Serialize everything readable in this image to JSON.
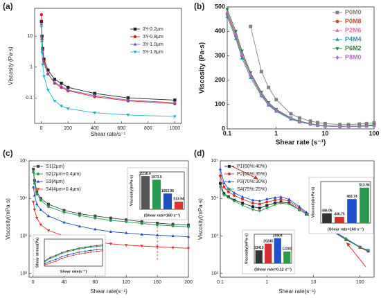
{
  "chart_data": [
    {
      "type": "line",
      "label": "(a)",
      "ylabel": "Viscosity (Pa·s)",
      "xlabel": "Shear rate/s⁻¹",
      "x": [
        1,
        5,
        10,
        20,
        50,
        100,
        150,
        200,
        400,
        650,
        1000
      ],
      "xlim": [
        -50,
        1050
      ],
      "xticks": [
        0,
        200,
        400,
        600,
        800,
        1000
      ],
      "ylim": [
        0.015,
        80
      ],
      "ylog": true,
      "yticks": [
        0.1,
        1,
        10
      ],
      "legend": "upper right",
      "series": [
        {
          "name": "3Y-0.2μm",
          "color": "#222222",
          "marker": "square",
          "values": [
            30,
            10,
            4,
            1.8,
            0.8,
            0.4,
            0.3,
            0.22,
            0.14,
            0.1,
            0.085
          ]
        },
        {
          "name": "3Y-0.8μm",
          "color": "#e02020",
          "marker": "circle",
          "values": [
            50,
            8,
            3.5,
            1.5,
            0.6,
            0.3,
            0.22,
            0.17,
            0.11,
            0.08,
            0.065
          ]
        },
        {
          "name": "3Y-1.0μm",
          "color": "#7a5cc0",
          "marker": "triangle",
          "values": [
            25,
            7,
            3,
            1.3,
            0.6,
            0.32,
            0.24,
            0.18,
            0.12,
            0.085,
            0.07
          ]
        },
        {
          "name": "5Y-1.8μm",
          "color": "#20b8c0",
          "marker": "triangle-down",
          "values": [
            20,
            3,
            1.2,
            0.5,
            0.18,
            0.08,
            0.055,
            0.045,
            0.033,
            0.028,
            0.025
          ]
        }
      ]
    },
    {
      "type": "line",
      "label": "(b)",
      "ylabel": "Viscosity (Pa·s)",
      "xlabel": "Shear rate (s⁻¹)",
      "x": [
        0.1,
        0.15,
        0.2,
        0.3,
        0.5,
        0.7,
        1,
        2,
        3,
        5,
        7,
        10,
        20,
        30,
        50,
        70,
        100
      ],
      "xlim": [
        0.1,
        100
      ],
      "xlog": true,
      "xticks": [
        0.1,
        1,
        10,
        100
      ],
      "ylim": [
        0,
        500
      ],
      "yticks": [
        0,
        100,
        200,
        300,
        400,
        500
      ],
      "legend": "upper right",
      "legend_colored_text": true,
      "bold_labels": true,
      "series": [
        {
          "name": "P0M0",
          "color": "#808080",
          "marker": "square",
          "values": [
            null,
            null,
            null,
            420,
            235,
            170,
            120,
            62,
            45,
            32,
            26,
            22,
            18,
            18,
            20,
            22,
            25
          ]
        },
        {
          "name": "P0M8",
          "color": "#c0502a",
          "marker": "circle",
          "values": [
            470,
            380,
            300,
            220,
            140,
            100,
            75,
            42,
            30,
            20,
            15,
            12,
            10,
            10,
            11,
            13,
            16
          ]
        },
        {
          "name": "P2M6",
          "color": "#e070a0",
          "marker": "triangle",
          "values": [
            480,
            390,
            310,
            225,
            145,
            105,
            78,
            44,
            31,
            21,
            16,
            13,
            10,
            10,
            11,
            13,
            15
          ]
        },
        {
          "name": "P4M4",
          "color": "#3090a0",
          "marker": "triangle",
          "values": [
            460,
            370,
            290,
            210,
            135,
            97,
            72,
            40,
            28,
            19,
            14,
            11,
            9,
            9,
            10,
            11,
            13
          ]
        },
        {
          "name": "P6M2",
          "color": "#2a8040",
          "marker": "triangle-down",
          "values": [
            490,
            400,
            320,
            230,
            150,
            108,
            80,
            45,
            32,
            22,
            16,
            13,
            11,
            11,
            12,
            14,
            17
          ]
        },
        {
          "name": "P8M0",
          "color": "#b070c0",
          "marker": "diamond",
          "values": [
            475,
            385,
            305,
            222,
            142,
            102,
            76,
            43,
            30,
            20,
            15,
            12,
            10,
            10,
            11,
            12,
            14
          ]
        }
      ]
    },
    {
      "type": "line",
      "label": "(c)",
      "ylabel": "Viscosity(mPa·s)",
      "xlabel": "Shear rate(s⁻¹)",
      "x": [
        0.5,
        2,
        5,
        10,
        20,
        40,
        60,
        80,
        100,
        120,
        140,
        160,
        180,
        200
      ],
      "xlim": [
        -5,
        200
      ],
      "xticks": [
        0,
        40,
        80,
        120,
        160,
        200
      ],
      "ylim": [
        80,
        100000
      ],
      "ylog": true,
      "yticks": [
        {
          "value": 100,
          "label": "10²"
        },
        {
          "value": 1000,
          "label": "10³"
        },
        {
          "value": 10000,
          "label": "10⁴"
        },
        {
          "value": 100000,
          "label": "10⁵"
        }
      ],
      "legend": "upper left",
      "reference_x": 160,
      "series": [
        {
          "name": "S1(2μm)",
          "color": "#444444",
          "marker": "square",
          "values": [
            60000,
            30000,
            15000,
            10000,
            7000,
            4800,
            3900,
            3400,
            3000,
            2700,
            2400,
            2200,
            2050,
            1950
          ]
        },
        {
          "name": "S2(2μm+0.4μm)",
          "color": "#2a9a50",
          "marker": "circle",
          "values": [
            50000,
            25000,
            13000,
            9000,
            6000,
            4300,
            3500,
            3000,
            2600,
            2400,
            2150,
            1970,
            1850,
            1750
          ]
        },
        {
          "name": "S3(4μm)",
          "color": "#2050c0",
          "marker": "triangle",
          "values": [
            20000,
            12000,
            7000,
            5000,
            3400,
            2300,
            1800,
            1500,
            1300,
            1200,
            1100,
            1050,
            1000,
            950
          ]
        },
        {
          "name": "S4(4μm+0.4μm)",
          "color": "#e03030",
          "marker": "triangle-down",
          "values": [
            8000,
            5000,
            3000,
            2000,
            1400,
            1000,
            800,
            700,
            620,
            570,
            540,
            514,
            490,
            470
          ]
        }
      ],
      "insets": [
        {
          "type": "bar",
          "ylabel": "Viscosity(mPa·s)",
          "xlabel": "(Shear rate=160 s⁻¹)",
          "ylim": [
            0,
            2500
          ],
          "values": [
            2218.4,
            1973.5,
            1053.96,
            513.94
          ],
          "colors": [
            "#555555",
            "#2a9a50",
            "#2050c0",
            "#e03030"
          ]
        },
        {
          "type": "line",
          "ylabel": "Shear stress(Pa)",
          "xlabel": "Shear rate(s⁻¹)",
          "xlim": [
            0,
            100
          ],
          "ylim": [
            0,
            300
          ],
          "x": [
            1,
            10,
            20,
            30,
            40,
            50,
            60,
            70,
            80,
            90,
            100
          ],
          "series": [
            {
              "color": "#444444",
              "values": [
                60,
                95,
                120,
                150,
                170,
                185,
                200,
                210,
                220,
                228,
                235
              ]
            },
            {
              "color": "#2a9a50",
              "values": [
                50,
                85,
                110,
                140,
                160,
                175,
                190,
                200,
                210,
                218,
                225
              ]
            },
            {
              "color": "#2050c0",
              "values": [
                30,
                55,
                75,
                105,
                125,
                140,
                155,
                165,
                175,
                182,
                190
              ]
            },
            {
              "color": "#e03030",
              "values": [
                15,
                35,
                55,
                85,
                105,
                120,
                135,
                145,
                155,
                162,
                170
              ]
            }
          ]
        }
      ]
    },
    {
      "type": "line",
      "label": "(d)",
      "ylabel": "Viscosity(mPa·s)",
      "xlabel": "Shear rate(s⁻¹)",
      "x": [
        0.1,
        0.12,
        0.15,
        0.2,
        0.3,
        0.5,
        0.7,
        1,
        1.5,
        2,
        3,
        5,
        7,
        10,
        20,
        50,
        100,
        150
      ],
      "xlim": [
        0.1,
        200
      ],
      "xlog": true,
      "xticks": [
        0.1,
        1,
        10,
        100
      ],
      "ylim": [
        80,
        100000
      ],
      "ylog": true,
      "yticks": [
        {
          "value": 100,
          "label": "10²"
        },
        {
          "value": 1000,
          "label": "10³"
        },
        {
          "value": 10000,
          "label": "10⁴"
        },
        {
          "value": 100000,
          "label": "10⁵"
        }
      ],
      "legend": "upper left",
      "series": [
        {
          "name": "P1(60%:40%)",
          "color": "#222222",
          "marker": "square",
          "values": [
            25000,
            13410,
            11000,
            9000,
            7500,
            6000,
            5500,
            6500,
            7500,
            8000,
            7500,
            5000,
            3800,
            2900,
            1600,
            800,
            500,
            400
          ]
        },
        {
          "name": "P2(65%:35%)",
          "color": "#d03030",
          "marker": "circle",
          "values": [
            40000,
            20245,
            15000,
            12000,
            9500,
            7500,
            7000,
            8000,
            9000,
            9500,
            8500,
            5500,
            4000,
            3000,
            1650,
            820,
            490,
            390
          ]
        },
        {
          "name": "P3(70%:30%)",
          "color": "#2050d0",
          "marker": "triangle",
          "values": [
            60000,
            25904,
            18000,
            14000,
            11000,
            9000,
            8500,
            9500,
            10500,
            11000,
            9500,
            6000,
            4300,
            3200,
            1700,
            850,
            510,
            400
          ]
        },
        {
          "name": "S4(75%:25%)",
          "color": "#2a9a50",
          "marker": "triangle-down",
          "values": [
            20000,
            12201,
            10500,
            8500,
            6500,
            5000,
            4600,
            5500,
            6800,
            7500,
            7000,
            5000,
            3800,
            2900,
            1600,
            810,
            500,
            420
          ]
        }
      ],
      "insets": [
        {
          "type": "bar",
          "ylabel": "Viscosity(mPa·s)",
          "xlabel": "(Shear rate=160 s⁻¹)",
          "ylim": [
            420,
            530
          ],
          "values": [
            446.06,
            436.75,
            483.74,
            513.94
          ],
          "colors": [
            "#333333",
            "#d03030",
            "#2050d0",
            "#2a9a50"
          ]
        },
        {
          "type": "bar",
          "ylabel": "Viscosity(mPa·s)",
          "xlabel": "(Shear rate=0.12 s⁻¹)",
          "ylim": [
            0,
            30000
          ],
          "values": [
            13410,
            20245,
            25904,
            12201
          ],
          "colors": [
            "#333333",
            "#d03030",
            "#2050d0",
            "#2a9a50"
          ]
        }
      ]
    }
  ]
}
